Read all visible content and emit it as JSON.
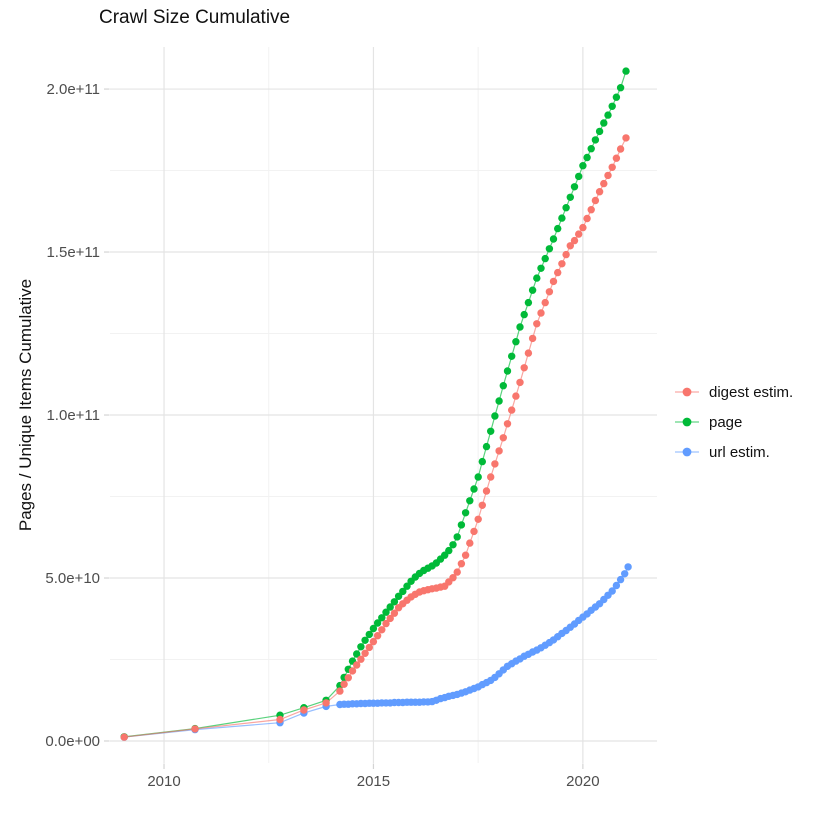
{
  "title": "Crawl Size Cumulative",
  "y_axis_title": "Pages / Unique Items Cumulative",
  "legend": {
    "items": [
      {
        "label": "digest estim.",
        "color": "#F8766D"
      },
      {
        "label": "page",
        "color": "#00BA38"
      },
      {
        "label": "url estim.",
        "color": "#619CFF"
      }
    ]
  },
  "colors": {
    "background": "#FFFFFF",
    "grid_major": "#E4E4E4",
    "grid_minor": "#F2F2F2",
    "tick_mark": "#D4D4D4",
    "axis_text": "#4D4D4D",
    "digest": "#F8766D",
    "page": "#00BA38",
    "url": "#619CFF"
  },
  "chart_data": {
    "type": "scatter",
    "title": "Crawl Size Cumulative",
    "xlabel": "",
    "ylabel": "Pages / Unique Items Cumulative",
    "value_unit_multiplier": 1000000000,
    "xlim": [
      2008.71,
      2021.77
    ],
    "ylim_billions": [
      -6.75,
      212.9
    ],
    "grid": true,
    "legend_position": "right",
    "x_major_ticks": [
      {
        "v": 2010,
        "label": "2010"
      },
      {
        "v": 2015,
        "label": "2015"
      },
      {
        "v": 2020,
        "label": "2020"
      }
    ],
    "x_minor_gridlines": [
      2012.5,
      2017.5
    ],
    "y_major_ticks": [
      {
        "v": 0,
        "label": "0.0e+00"
      },
      {
        "v": 50,
        "label": "5.0e+10"
      },
      {
        "v": 100,
        "label": "1.0e+11"
      },
      {
        "v": 150,
        "label": "1.5e+11"
      },
      {
        "v": 200,
        "label": "2.0e+11"
      }
    ],
    "y_minor_gridlines": [
      25,
      75,
      125,
      175
    ],
    "series": [
      {
        "name": "digest estim.",
        "color": "#F8766D",
        "points": [
          [
            2009.05,
            1.2
          ],
          [
            2010.74,
            3.7
          ],
          [
            2012.77,
            6.6
          ],
          [
            2013.34,
            9.5
          ],
          [
            2013.87,
            11.7
          ],
          [
            2014.2,
            15.3
          ],
          [
            2014.3,
            17.4
          ],
          [
            2014.4,
            19.4
          ],
          [
            2014.5,
            21.5
          ],
          [
            2014.6,
            23.3
          ],
          [
            2014.7,
            25.1
          ],
          [
            2014.8,
            26.9
          ],
          [
            2014.9,
            28.7
          ],
          [
            2015.0,
            30.5
          ],
          [
            2015.1,
            32.3
          ],
          [
            2015.2,
            34.1
          ],
          [
            2015.3,
            36.0
          ],
          [
            2015.4,
            37.6
          ],
          [
            2015.5,
            39.2
          ],
          [
            2015.6,
            40.9
          ],
          [
            2015.7,
            42.1
          ],
          [
            2015.8,
            43.2
          ],
          [
            2015.9,
            44.2
          ],
          [
            2016.0,
            45.0
          ],
          [
            2016.1,
            45.7
          ],
          [
            2016.2,
            46.1
          ],
          [
            2016.3,
            46.4
          ],
          [
            2016.4,
            46.7
          ],
          [
            2016.5,
            46.9
          ],
          [
            2016.6,
            47.2
          ],
          [
            2016.7,
            47.5
          ],
          [
            2016.8,
            48.8
          ],
          [
            2016.9,
            50.1
          ],
          [
            2017.0,
            51.8
          ],
          [
            2017.1,
            54.4
          ],
          [
            2017.2,
            57.0
          ],
          [
            2017.3,
            60.7
          ],
          [
            2017.4,
            64.3
          ],
          [
            2017.5,
            68.0
          ],
          [
            2017.6,
            72.3
          ],
          [
            2017.7,
            76.7
          ],
          [
            2017.8,
            81.0
          ],
          [
            2017.9,
            85.0
          ],
          [
            2018.0,
            89.0
          ],
          [
            2018.1,
            93.0
          ],
          [
            2018.2,
            97.3
          ],
          [
            2018.3,
            101.5
          ],
          [
            2018.4,
            105.8
          ],
          [
            2018.5,
            110.0
          ],
          [
            2018.6,
            114.5
          ],
          [
            2018.7,
            119.0
          ],
          [
            2018.8,
            123.5
          ],
          [
            2018.9,
            128.0
          ],
          [
            2019.0,
            131.3
          ],
          [
            2019.1,
            134.5
          ],
          [
            2019.2,
            137.8
          ],
          [
            2019.3,
            141.0
          ],
          [
            2019.4,
            143.7
          ],
          [
            2019.5,
            146.4
          ],
          [
            2019.6,
            149.2
          ],
          [
            2019.7,
            151.9
          ],
          [
            2019.8,
            153.5
          ],
          [
            2019.9,
            155.5
          ],
          [
            2020.0,
            157.5
          ],
          [
            2020.1,
            160.3
          ],
          [
            2020.2,
            163.0
          ],
          [
            2020.3,
            165.8
          ],
          [
            2020.4,
            168.5
          ],
          [
            2020.5,
            171.0
          ],
          [
            2020.6,
            173.5
          ],
          [
            2020.7,
            176.0
          ],
          [
            2020.8,
            178.8
          ],
          [
            2020.9,
            181.6
          ],
          [
            2021.03,
            185.0
          ]
        ]
      },
      {
        "name": "page",
        "color": "#00BA38",
        "points": [
          [
            2009.05,
            1.3
          ],
          [
            2010.74,
            3.8
          ],
          [
            2012.77,
            7.9
          ],
          [
            2013.34,
            10.2
          ],
          [
            2013.87,
            12.5
          ],
          [
            2014.2,
            17.0
          ],
          [
            2014.3,
            19.5
          ],
          [
            2014.4,
            22.0
          ],
          [
            2014.5,
            24.5
          ],
          [
            2014.6,
            26.7
          ],
          [
            2014.7,
            28.9
          ],
          [
            2014.8,
            30.9
          ],
          [
            2014.9,
            32.7
          ],
          [
            2015.0,
            34.5
          ],
          [
            2015.1,
            36.2
          ],
          [
            2015.2,
            37.8
          ],
          [
            2015.3,
            39.5
          ],
          [
            2015.4,
            41.1
          ],
          [
            2015.5,
            42.7
          ],
          [
            2015.6,
            44.4
          ],
          [
            2015.7,
            45.9
          ],
          [
            2015.8,
            47.5
          ],
          [
            2015.9,
            49.0
          ],
          [
            2016.0,
            50.3
          ],
          [
            2016.1,
            51.4
          ],
          [
            2016.2,
            52.3
          ],
          [
            2016.3,
            53.0
          ],
          [
            2016.4,
            53.7
          ],
          [
            2016.5,
            54.6
          ],
          [
            2016.6,
            55.8
          ],
          [
            2016.7,
            57.0
          ],
          [
            2016.8,
            58.4
          ],
          [
            2016.9,
            60.2
          ],
          [
            2017.0,
            62.6
          ],
          [
            2017.1,
            66.3
          ],
          [
            2017.2,
            70.0
          ],
          [
            2017.3,
            73.7
          ],
          [
            2017.4,
            77.3
          ],
          [
            2017.5,
            81.0
          ],
          [
            2017.6,
            85.7
          ],
          [
            2017.7,
            90.3
          ],
          [
            2017.8,
            95.0
          ],
          [
            2017.9,
            99.7
          ],
          [
            2018.0,
            104.3
          ],
          [
            2018.1,
            109.0
          ],
          [
            2018.2,
            113.5
          ],
          [
            2018.3,
            118.0
          ],
          [
            2018.4,
            122.5
          ],
          [
            2018.5,
            127.0
          ],
          [
            2018.6,
            130.8
          ],
          [
            2018.7,
            134.5
          ],
          [
            2018.8,
            138.3
          ],
          [
            2018.9,
            142.0
          ],
          [
            2019.0,
            145.0
          ],
          [
            2019.1,
            148.0
          ],
          [
            2019.2,
            151.0
          ],
          [
            2019.3,
            154.0
          ],
          [
            2019.4,
            157.2
          ],
          [
            2019.5,
            160.4
          ],
          [
            2019.6,
            163.6
          ],
          [
            2019.7,
            166.8
          ],
          [
            2019.8,
            170.0
          ],
          [
            2019.9,
            173.2
          ],
          [
            2020.0,
            176.5
          ],
          [
            2020.1,
            179.0
          ],
          [
            2020.2,
            181.7
          ],
          [
            2020.3,
            184.4
          ],
          [
            2020.4,
            187.0
          ],
          [
            2020.5,
            189.6
          ],
          [
            2020.6,
            192.0
          ],
          [
            2020.7,
            194.7
          ],
          [
            2020.8,
            197.5
          ],
          [
            2020.9,
            200.4
          ],
          [
            2021.03,
            205.5
          ]
        ]
      },
      {
        "name": "url estim.",
        "color": "#619CFF",
        "points": [
          [
            2009.05,
            1.2
          ],
          [
            2010.74,
            3.5
          ],
          [
            2012.77,
            5.6
          ],
          [
            2013.34,
            8.6
          ],
          [
            2013.87,
            10.6
          ],
          [
            2014.2,
            11.2
          ],
          [
            2014.3,
            11.3
          ],
          [
            2014.4,
            11.3
          ],
          [
            2014.5,
            11.4
          ],
          [
            2014.6,
            11.4
          ],
          [
            2014.7,
            11.5
          ],
          [
            2014.8,
            11.5
          ],
          [
            2014.9,
            11.6
          ],
          [
            2015.0,
            11.6
          ],
          [
            2015.1,
            11.6
          ],
          [
            2015.2,
            11.7
          ],
          [
            2015.3,
            11.7
          ],
          [
            2015.4,
            11.7
          ],
          [
            2015.5,
            11.8
          ],
          [
            2015.6,
            11.8
          ],
          [
            2015.7,
            11.8
          ],
          [
            2015.8,
            11.9
          ],
          [
            2015.9,
            11.9
          ],
          [
            2016.0,
            11.9
          ],
          [
            2016.1,
            11.9
          ],
          [
            2016.2,
            12.0
          ],
          [
            2016.3,
            12.0
          ],
          [
            2016.4,
            12.1
          ],
          [
            2016.5,
            12.5
          ],
          [
            2016.6,
            13.0
          ],
          [
            2016.7,
            13.3
          ],
          [
            2016.8,
            13.7
          ],
          [
            2016.9,
            14.0
          ],
          [
            2017.0,
            14.3
          ],
          [
            2017.1,
            14.7
          ],
          [
            2017.2,
            15.1
          ],
          [
            2017.3,
            15.6
          ],
          [
            2017.4,
            16.1
          ],
          [
            2017.5,
            16.6
          ],
          [
            2017.6,
            17.3
          ],
          [
            2017.7,
            17.9
          ],
          [
            2017.8,
            18.6
          ],
          [
            2017.9,
            19.5
          ],
          [
            2018.0,
            20.6
          ],
          [
            2018.1,
            21.8
          ],
          [
            2018.2,
            22.9
          ],
          [
            2018.3,
            23.7
          ],
          [
            2018.4,
            24.5
          ],
          [
            2018.5,
            25.2
          ],
          [
            2018.6,
            26.0
          ],
          [
            2018.7,
            26.6
          ],
          [
            2018.8,
            27.3
          ],
          [
            2018.9,
            27.9
          ],
          [
            2019.0,
            28.6
          ],
          [
            2019.1,
            29.4
          ],
          [
            2019.2,
            30.2
          ],
          [
            2019.3,
            31.0
          ],
          [
            2019.4,
            32.0
          ],
          [
            2019.5,
            33.0
          ],
          [
            2019.6,
            33.9
          ],
          [
            2019.7,
            34.9
          ],
          [
            2019.8,
            35.9
          ],
          [
            2019.9,
            37.0
          ],
          [
            2020.0,
            38.0
          ],
          [
            2020.1,
            39.0
          ],
          [
            2020.2,
            40.1
          ],
          [
            2020.3,
            41.1
          ],
          [
            2020.4,
            42.1
          ],
          [
            2020.5,
            43.4
          ],
          [
            2020.6,
            44.7
          ],
          [
            2020.7,
            46.0
          ],
          [
            2020.8,
            47.7
          ],
          [
            2020.9,
            49.5
          ],
          [
            2021.0,
            51.3
          ],
          [
            2021.08,
            53.4
          ]
        ]
      }
    ]
  }
}
